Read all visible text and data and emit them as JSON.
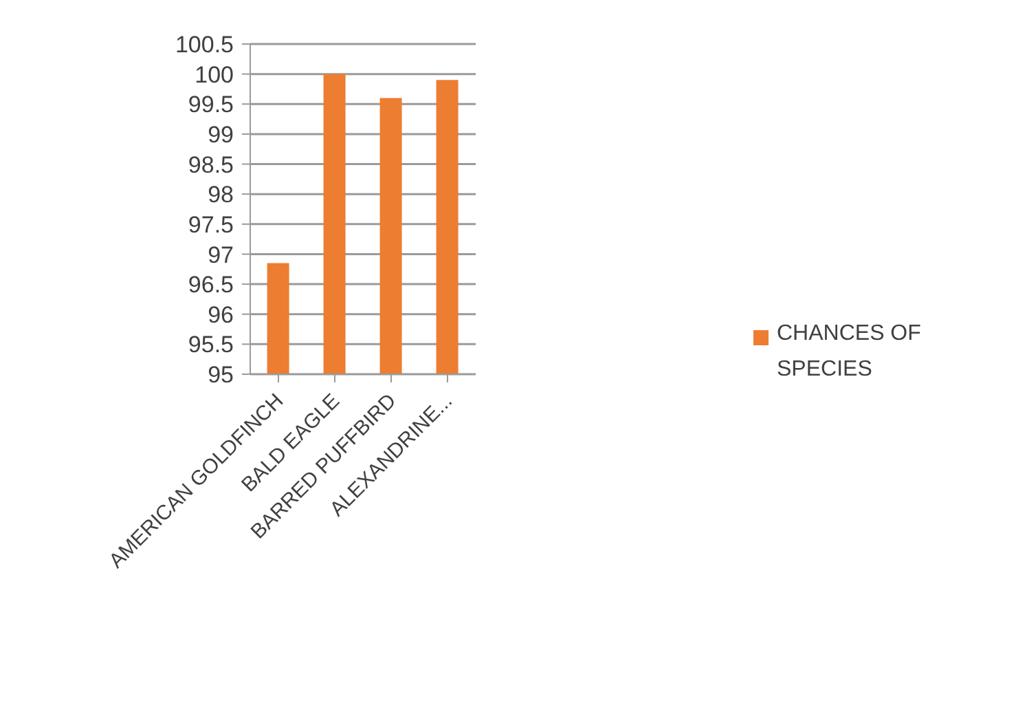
{
  "chart_data": {
    "type": "bar",
    "categories": [
      "AMERICAN GOLDFINCH",
      "BALD EAGLE",
      "BARRED PUFFBIRD",
      "ALEXANDRINE..."
    ],
    "series": [
      {
        "name": "CHANCES OF SPECIES",
        "color": "#ed7d31",
        "values": [
          96.85,
          100,
          99.6,
          99.9
        ]
      }
    ],
    "ylim": [
      95,
      100.5
    ],
    "yticks": [
      95,
      95.5,
      96,
      96.5,
      97,
      97.5,
      98,
      98.5,
      99,
      99.5,
      100,
      100.5
    ],
    "grid": "y",
    "legend": "right"
  }
}
